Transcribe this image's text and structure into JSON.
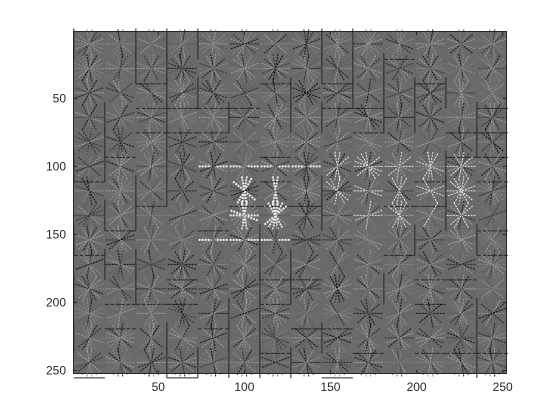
{
  "chart_data": {
    "type": "heatmap",
    "description_kind": "HOG feature glyph visualization",
    "title": "",
    "xlabel": "",
    "ylabel": "",
    "xlim": [
      0.5,
      252.5
    ],
    "ylim": [
      0.5,
      252.5
    ],
    "y_direction": "reverse",
    "x_ticks": [
      50,
      100,
      150,
      200,
      250
    ],
    "y_ticks": [
      50,
      100,
      150,
      200,
      250
    ],
    "cell_size": 18,
    "cells_x": 14,
    "cells_y": 14,
    "orientations": 9,
    "colormap": "gray",
    "background_color": "#6a6a6a",
    "axes_color": "#262626",
    "highlight_regions": [
      {
        "name": "upper-bar",
        "x": [
          75,
          150
        ],
        "y": [
          90,
          102
        ]
      },
      {
        "name": "lower-bar",
        "x": [
          75,
          135
        ],
        "y": [
          150,
          162
        ]
      },
      {
        "name": "left-ring",
        "x": [
          85,
          115
        ],
        "y": [
          108,
          148
        ]
      },
      {
        "name": "right-ring",
        "x": [
          108,
          130
        ],
        "y": [
          108,
          148
        ]
      },
      {
        "name": "middle-band",
        "x": [
          140,
          230
        ],
        "y": [
          95,
          145
        ]
      }
    ]
  }
}
